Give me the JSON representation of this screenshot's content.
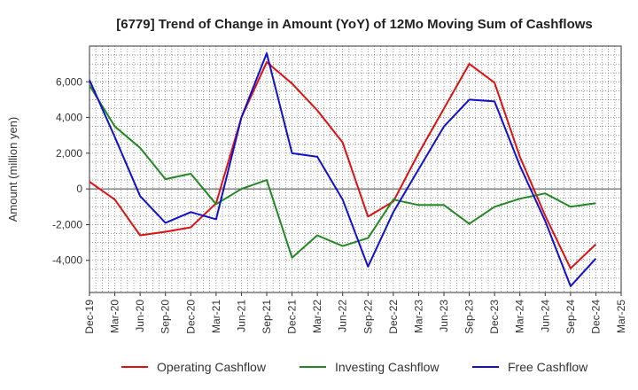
{
  "chart_data": {
    "type": "line",
    "title": "[6779]  Trend of Change in Amount (YoY) of 12Mo Moving Sum of Cashflows",
    "xlabel": "",
    "ylabel": "Amount (million yen)",
    "categories": [
      "Dec-19",
      "Mar-20",
      "Jun-20",
      "Sep-20",
      "Dec-20",
      "Mar-21",
      "Jun-21",
      "Sep-21",
      "Dec-21",
      "Mar-22",
      "Jun-22",
      "Sep-22",
      "Dec-22",
      "Mar-23",
      "Jun-23",
      "Sep-23",
      "Dec-23",
      "Mar-24",
      "Jun-24",
      "Sep-24",
      "Dec-24",
      "Mar-25"
    ],
    "ylim": [
      -5800,
      8000
    ],
    "yticks": [
      -4000,
      -2000,
      0,
      2000,
      4000,
      6000
    ],
    "ytick_labels": [
      "-4,000",
      "-2,000",
      "0",
      "2,000",
      "4,000",
      "6,000"
    ],
    "grid": true,
    "legend_position": "bottom",
    "series": [
      {
        "name": "Operating Cashflow",
        "color": "#dd1111",
        "values": [
          400,
          -600,
          -2600,
          -2400,
          -2150,
          -800,
          4000,
          7100,
          5900,
          4400,
          2600,
          -1550,
          -700,
          2000,
          4500,
          7000,
          5950,
          1800,
          -1500,
          -4450,
          -3100,
          null
        ]
      },
      {
        "name": "Investing Cashflow",
        "color": "#228822",
        "values": [
          5800,
          3500,
          2300,
          550,
          850,
          -850,
          0,
          500,
          -3850,
          -2600,
          -3200,
          -2750,
          -600,
          -900,
          -900,
          -1950,
          -1000,
          -550,
          -250,
          -1000,
          -800,
          null
        ]
      },
      {
        "name": "Free Cashflow",
        "color": "#1111cc",
        "values": [
          6100,
          2900,
          -400,
          -1900,
          -1300,
          -1700,
          4000,
          7600,
          2000,
          1800,
          -600,
          -4350,
          -1300,
          1100,
          3500,
          5000,
          4900,
          1300,
          -1800,
          -5450,
          -3900,
          null
        ]
      }
    ]
  }
}
